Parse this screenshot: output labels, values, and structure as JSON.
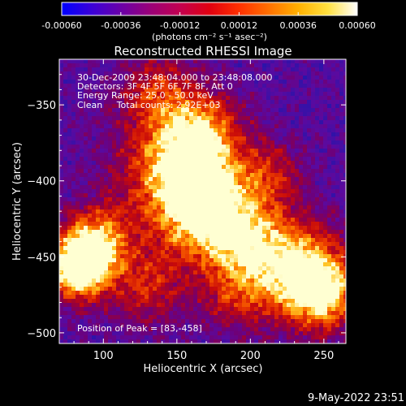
{
  "colorbar": {
    "ticks": [
      "-0.00060",
      "-0.00036",
      "-0.00012",
      "0.00012",
      "0.00036",
      "0.00060"
    ],
    "units_label": "(photons cm⁻² s⁻¹ asec⁻²)",
    "scale_colors": [
      "#0000ff",
      "#3a00d8",
      "#6a00a8",
      "#9a0078",
      "#c20050",
      "#e00010",
      "#ff3000",
      "#ff7000",
      "#ffb000",
      "#ffe040",
      "#ffffff"
    ]
  },
  "chart_data": {
    "type": "heatmap",
    "title": "Reconstructed RHESSI Image",
    "xlabel": "Heliocentric X (arcsec)",
    "ylabel": "Heliocentric Y (arcsec)",
    "xlim": [
      70,
      265
    ],
    "ylim": [
      -507,
      -320
    ],
    "xticks": [
      100,
      150,
      200,
      250
    ],
    "yticks": [
      -350,
      -400,
      -450,
      -500
    ],
    "annotations": [
      "30-Dec-2009 23:48:04.000 to 23:48:08.000",
      "Detectors: 3F 4F 5F 6F 7F 8F, Att 0",
      "Energy Range: 25.0 - 50.0 keV",
      "Clean     Total counts: 2.92E+03"
    ],
    "peak_label": "Position of Peak = [83,-458]",
    "peak": [
      83,
      -458
    ],
    "grid": "off",
    "value_range": [
      -0.0006,
      0.0006
    ]
  },
  "footer": {
    "timestamp": "9-May-2022 23:51"
  }
}
